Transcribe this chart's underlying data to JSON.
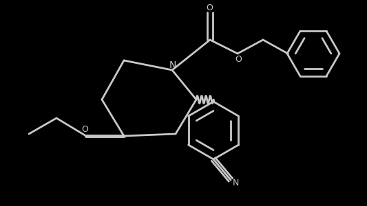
{
  "bg_color": "#000000",
  "line_color": "#c8c8c8",
  "line_width": 2.0,
  "figsize": [
    5.33,
    3.0
  ],
  "dpi": 100,
  "xlim": [
    0.0,
    5.33
  ],
  "ylim": [
    0.0,
    3.0
  ]
}
